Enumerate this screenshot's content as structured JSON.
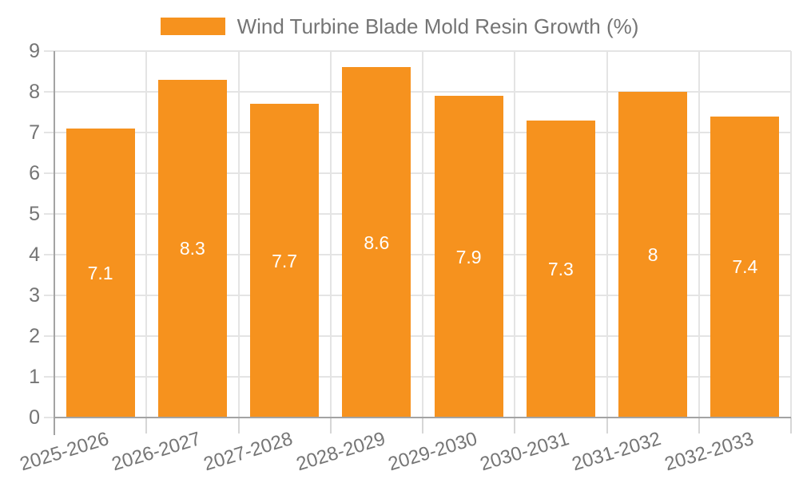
{
  "legend": {
    "label": "Wind Turbine Blade Mold Resin Growth (%)"
  },
  "colors": {
    "bar": "#f6921e",
    "bar_label": "#ffffff",
    "axis_text": "#757575",
    "grid_line": "#e4e4e4",
    "axis_line": "#a3a3a3",
    "background": "#ffffff"
  },
  "chart_data": {
    "type": "bar",
    "title": "",
    "legend_entries": [
      "Wind Turbine Blade Mold Resin Growth (%)"
    ],
    "legend_position": "top-center",
    "categories": [
      "2025-2026",
      "2026-2027",
      "2027-2028",
      "2028-2029",
      "2029-2030",
      "2030-2031",
      "2031-2032",
      "2032-2033"
    ],
    "values": [
      7.1,
      8.3,
      7.7,
      8.6,
      7.9,
      7.3,
      8,
      7.4
    ],
    "value_labels": [
      "7.1",
      "8.3",
      "7.7",
      "8.6",
      "7.9",
      "7.3",
      "8",
      "7.4"
    ],
    "xlabel": "",
    "ylabel": "",
    "ylim": [
      0,
      9
    ],
    "yticks": [
      0,
      1,
      2,
      3,
      4,
      5,
      6,
      7,
      8,
      9
    ],
    "grid": true,
    "grid_vertical": true,
    "bar_color": "#f6921e",
    "value_label_position": "center-of-bar",
    "xtick_rotation_deg": -17
  }
}
